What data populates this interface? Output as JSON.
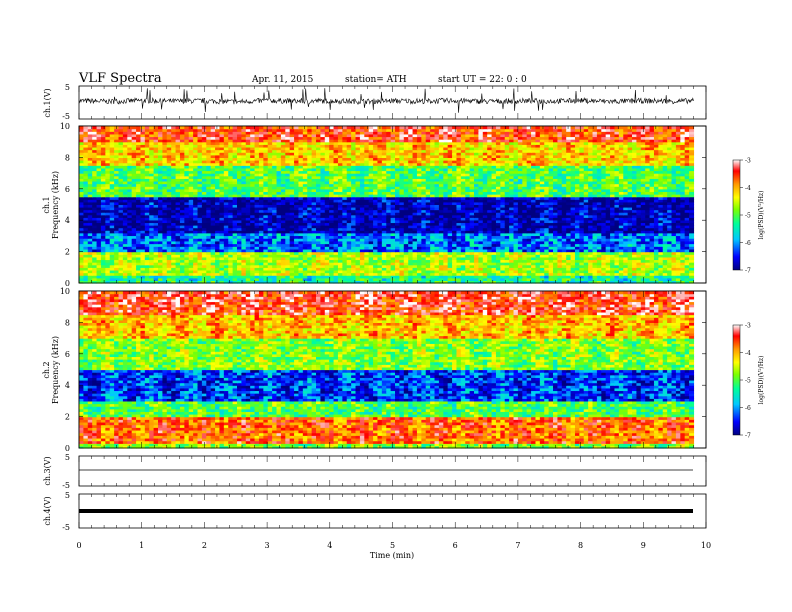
{
  "header": {
    "title": "VLF Spectra",
    "date": "Apr. 11, 2015",
    "station": "station= ATH",
    "start": "start  UT =   22: 0  : 0"
  },
  "colors": {
    "waveform": "#000000",
    "colormap": [
      "#000080",
      "#0000ff",
      "#00c8ff",
      "#00ff9a",
      "#7dff00",
      "#ffff00",
      "#ff9900",
      "#ff0000",
      "#ffffff"
    ]
  },
  "chart_data": [
    {
      "type": "line",
      "panel": "ch1-waveform",
      "ylabel": "ch.1(V)",
      "ylim": [
        -5,
        5
      ],
      "yticks": [
        "5",
        "-5"
      ],
      "xlim": [
        0,
        10
      ],
      "x": [
        0,
        0.5,
        1,
        1.5,
        2,
        2.5,
        3,
        3.5,
        4,
        4.5,
        5,
        5.5,
        6,
        6.5,
        7,
        7.5,
        8,
        8.5,
        9,
        9.5,
        9.8
      ],
      "values": [
        0.5,
        0.3,
        0.6,
        0.4,
        0.5,
        0.2,
        0.6,
        0.4,
        0.5,
        0.3,
        0.5,
        0.4,
        0.6,
        0.3,
        0.5,
        0.4,
        0.6,
        0.3,
        0.5,
        0.4,
        0.5
      ]
    },
    {
      "type": "heatmap",
      "panel": "ch1-spectrogram",
      "ylabel": "ch.1",
      "ylabel2": "Frequency (kHz)",
      "yticks": [
        "0",
        "2",
        "4",
        "6",
        "8",
        "10"
      ],
      "ylim": [
        0,
        10
      ],
      "xlim": [
        0,
        10
      ],
      "colorbar_label": "log(PSD)(V²/Hz)",
      "colorbar_ticks": [
        "-3",
        "-4",
        "-5",
        "-6",
        "-7"
      ],
      "colorbar_range": [
        -7,
        -3
      ],
      "bands_khz": [
        {
          "from": 0,
          "to": 0.5,
          "level": -5.5
        },
        {
          "from": 0.5,
          "to": 2.0,
          "level": -4.8
        },
        {
          "from": 2.0,
          "to": 3.2,
          "level": -6.2
        },
        {
          "from": 3.2,
          "to": 5.5,
          "level": -6.8
        },
        {
          "from": 5.5,
          "to": 7.5,
          "level": -5.2
        },
        {
          "from": 7.5,
          "to": 9.0,
          "level": -4.3
        },
        {
          "from": 9.0,
          "to": 10.0,
          "level": -3.6
        }
      ]
    },
    {
      "type": "heatmap",
      "panel": "ch2-spectrogram",
      "ylabel": "ch.2",
      "ylabel2": "Frequency (kHz)",
      "yticks": [
        "0",
        "2",
        "4",
        "6",
        "8",
        "10"
      ],
      "ylim": [
        0,
        10
      ],
      "xlim": [
        0,
        10
      ],
      "colorbar_label": "log(PSD)(V²/Hz)",
      "colorbar_ticks": [
        "-3",
        "-4",
        "-5",
        "-6",
        "-7"
      ],
      "colorbar_range": [
        -7,
        -3
      ],
      "bands_khz": [
        {
          "from": 0,
          "to": 0.3,
          "level": -5.0
        },
        {
          "from": 0.3,
          "to": 2.0,
          "level": -3.8
        },
        {
          "from": 2.0,
          "to": 3.0,
          "level": -5.2
        },
        {
          "from": 3.0,
          "to": 5.0,
          "level": -6.4
        },
        {
          "from": 5.0,
          "to": 7.0,
          "level": -5.0
        },
        {
          "from": 7.0,
          "to": 8.5,
          "level": -4.2
        },
        {
          "from": 8.5,
          "to": 10.0,
          "level": -3.5
        }
      ]
    },
    {
      "type": "line",
      "panel": "ch3-waveform",
      "ylabel": "ch.3(V)",
      "ylim": [
        -5,
        5
      ],
      "yticks": [
        "5",
        "-5"
      ],
      "xlim": [
        0,
        10
      ],
      "x": [
        0,
        9.8
      ],
      "values": [
        0,
        0
      ]
    },
    {
      "type": "line",
      "panel": "ch4-waveform",
      "ylabel": "ch.4(V)",
      "ylim": [
        -5,
        5
      ],
      "yticks": [
        "5",
        "-5"
      ],
      "xlim": [
        0,
        10
      ],
      "x": [
        0,
        9.8
      ],
      "values": [
        0,
        0
      ],
      "xlabel": "Time (min)",
      "xticks": [
        "0",
        "1",
        "2",
        "3",
        "4",
        "5",
        "6",
        "7",
        "8",
        "9",
        "10"
      ]
    }
  ]
}
